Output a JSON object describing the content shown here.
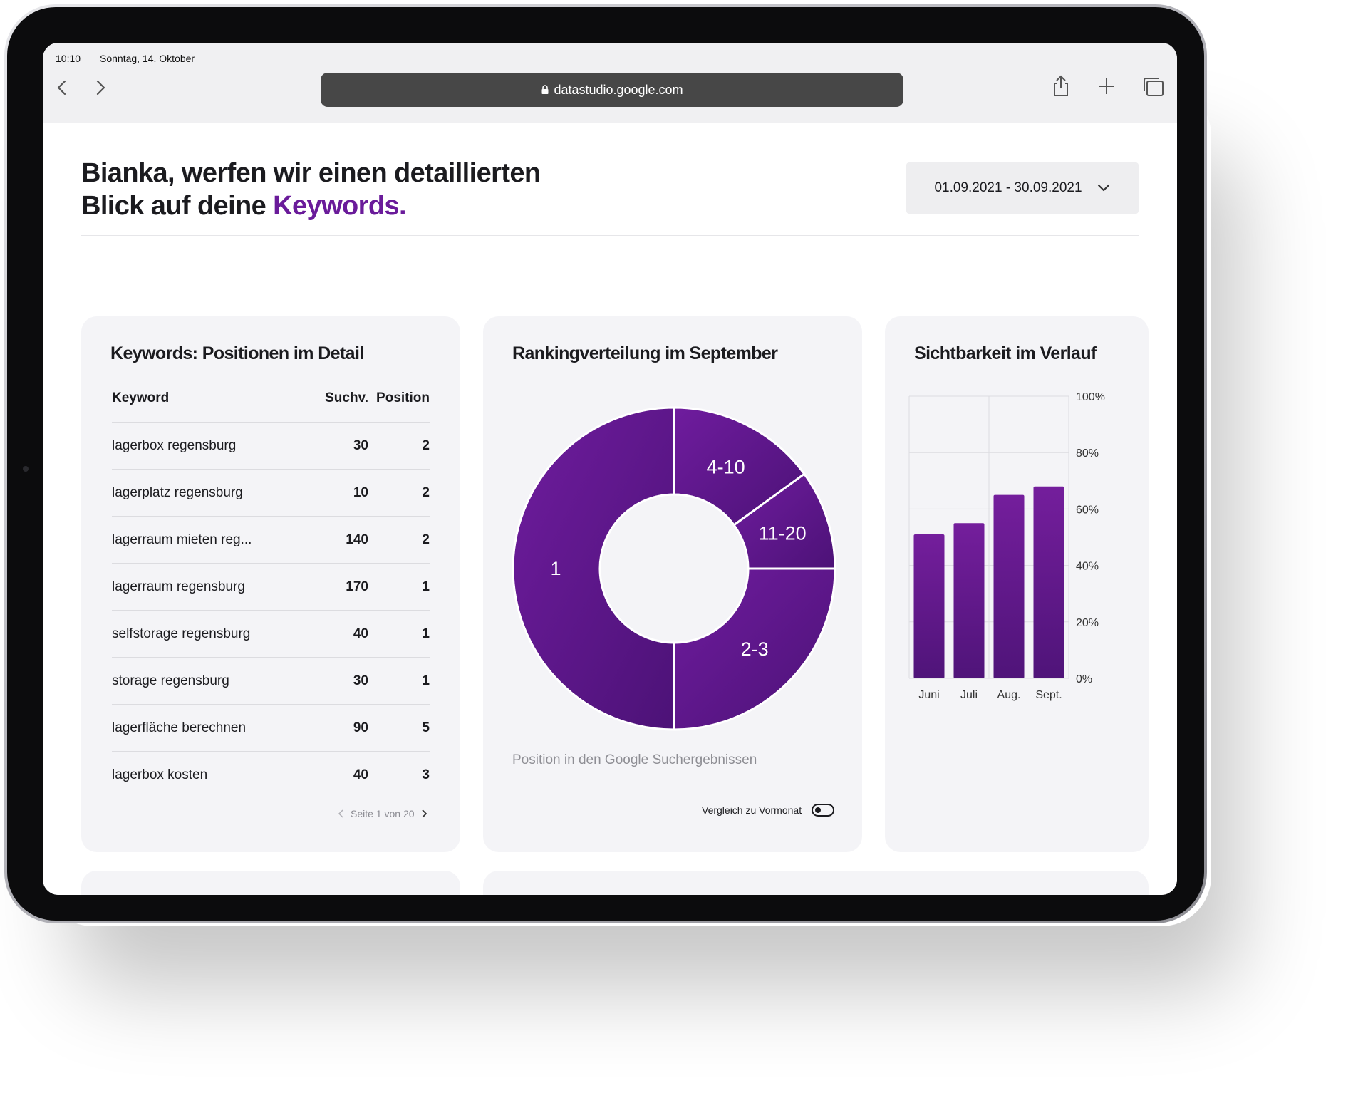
{
  "status_bar": {
    "time": "10:10",
    "date": "Sonntag, 14. Oktober"
  },
  "browser": {
    "url": "datastudio.google.com"
  },
  "header": {
    "headline_line1": "Bianka, werfen wir einen detaillierten",
    "headline_line2_prefix": "Blick auf deine ",
    "headline_accent": "Keywords.",
    "date_range": "01.09.2021 - 30.09.2021"
  },
  "colors": {
    "accent": "#6a1b9a",
    "purple_dark": "#4a1175",
    "purple_mid": "#6a1b9a"
  },
  "keywords_card": {
    "title": "Keywords: Positionen im Detail",
    "columns": [
      "Keyword",
      "Suchv.",
      "Position"
    ],
    "rows": [
      {
        "keyword": "lagerbox regensburg",
        "volume": "30",
        "position": "2"
      },
      {
        "keyword": "lagerplatz regensburg",
        "volume": "10",
        "position": "2"
      },
      {
        "keyword": "lagerraum mieten reg...",
        "volume": "140",
        "position": "2"
      },
      {
        "keyword": "lagerraum regensburg",
        "volume": "170",
        "position": "1"
      },
      {
        "keyword": "selfstorage regensburg",
        "volume": "40",
        "position": "1"
      },
      {
        "keyword": "storage regensburg",
        "volume": "30",
        "position": "1"
      },
      {
        "keyword": "lagerfläche berechnen",
        "volume": "90",
        "position": "5"
      },
      {
        "keyword": "lagerbox kosten",
        "volume": "40",
        "position": "3"
      }
    ],
    "pagination": "Seite 1 von 20"
  },
  "ranking_card": {
    "title": "Rankingverteilung im September",
    "caption": "Position in den Google Suchergebnissen",
    "compare_label": "Vergleich zu Vormonat"
  },
  "visibility_card": {
    "title": "Sichtbarkeit im Verlauf"
  },
  "chart_data": [
    {
      "type": "pie",
      "variant": "donut",
      "title": "Rankingverteilung im September",
      "caption": "Position in den Google Suchergebnissen",
      "slices": [
        {
          "label": "4-10",
          "value": 15
        },
        {
          "label": "11-20",
          "value": 10
        },
        {
          "label": "2-3",
          "value": 25
        },
        {
          "label": "1",
          "value": 50
        }
      ]
    },
    {
      "type": "bar",
      "title": "Sichtbarkeit im Verlauf",
      "categories": [
        "Juni",
        "Juli",
        "Aug.",
        "Sept."
      ],
      "values": [
        51,
        55,
        65,
        68
      ],
      "ylim": [
        0,
        100
      ],
      "yticks": [
        "0%",
        "20%",
        "40%",
        "60%",
        "80%",
        "100%"
      ],
      "ytick_values": [
        0,
        20,
        40,
        60,
        80,
        100
      ],
      "grid": true,
      "y_axis_side": "right"
    }
  ]
}
